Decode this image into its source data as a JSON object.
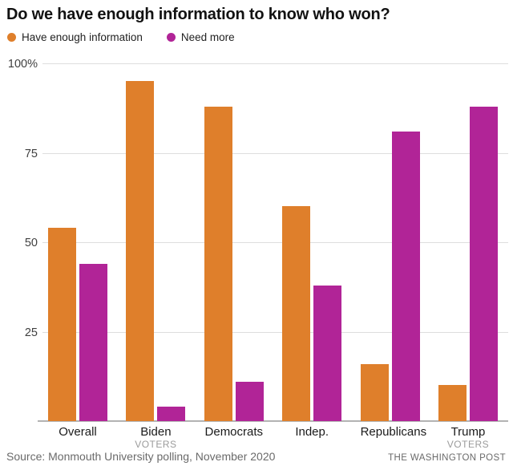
{
  "title": "Do we have enough information to know who won?",
  "colors": {
    "have_enough": "#df7f2b",
    "need_more": "#b12497",
    "gridline": "#dedede",
    "baseline": "#b3b3b3"
  },
  "legend": {
    "items": [
      {
        "label": "Have enough information",
        "color": "#df7f2b"
      },
      {
        "label": "Need more",
        "color": "#b12497"
      }
    ]
  },
  "chart_data": {
    "type": "bar",
    "categories": [
      {
        "label": "Overall",
        "sub": ""
      },
      {
        "label": "Biden",
        "sub": "VOTERS"
      },
      {
        "label": "Democrats",
        "sub": ""
      },
      {
        "label": "Indep.",
        "sub": ""
      },
      {
        "label": "Republicans",
        "sub": ""
      },
      {
        "label": "Trump",
        "sub": "VOTERS"
      }
    ],
    "series": [
      {
        "name": "Have enough information",
        "color": "#df7f2b",
        "values": [
          54,
          95,
          88,
          60,
          16,
          10
        ]
      },
      {
        "name": "Need more",
        "color": "#b12497",
        "values": [
          44,
          4,
          11,
          38,
          81,
          88
        ]
      }
    ],
    "ylabel": "",
    "xlabel": "",
    "ylim": [
      0,
      100
    ],
    "yticks": [
      {
        "value": 25,
        "label": "25"
      },
      {
        "value": 50,
        "label": "50"
      },
      {
        "value": 75,
        "label": "75"
      },
      {
        "value": 100,
        "label": "100%"
      }
    ],
    "grid": true,
    "legend_position": "top"
  },
  "footer": {
    "source": "Source: Monmouth University polling, November 2020",
    "credit": "THE WASHINGTON POST"
  }
}
